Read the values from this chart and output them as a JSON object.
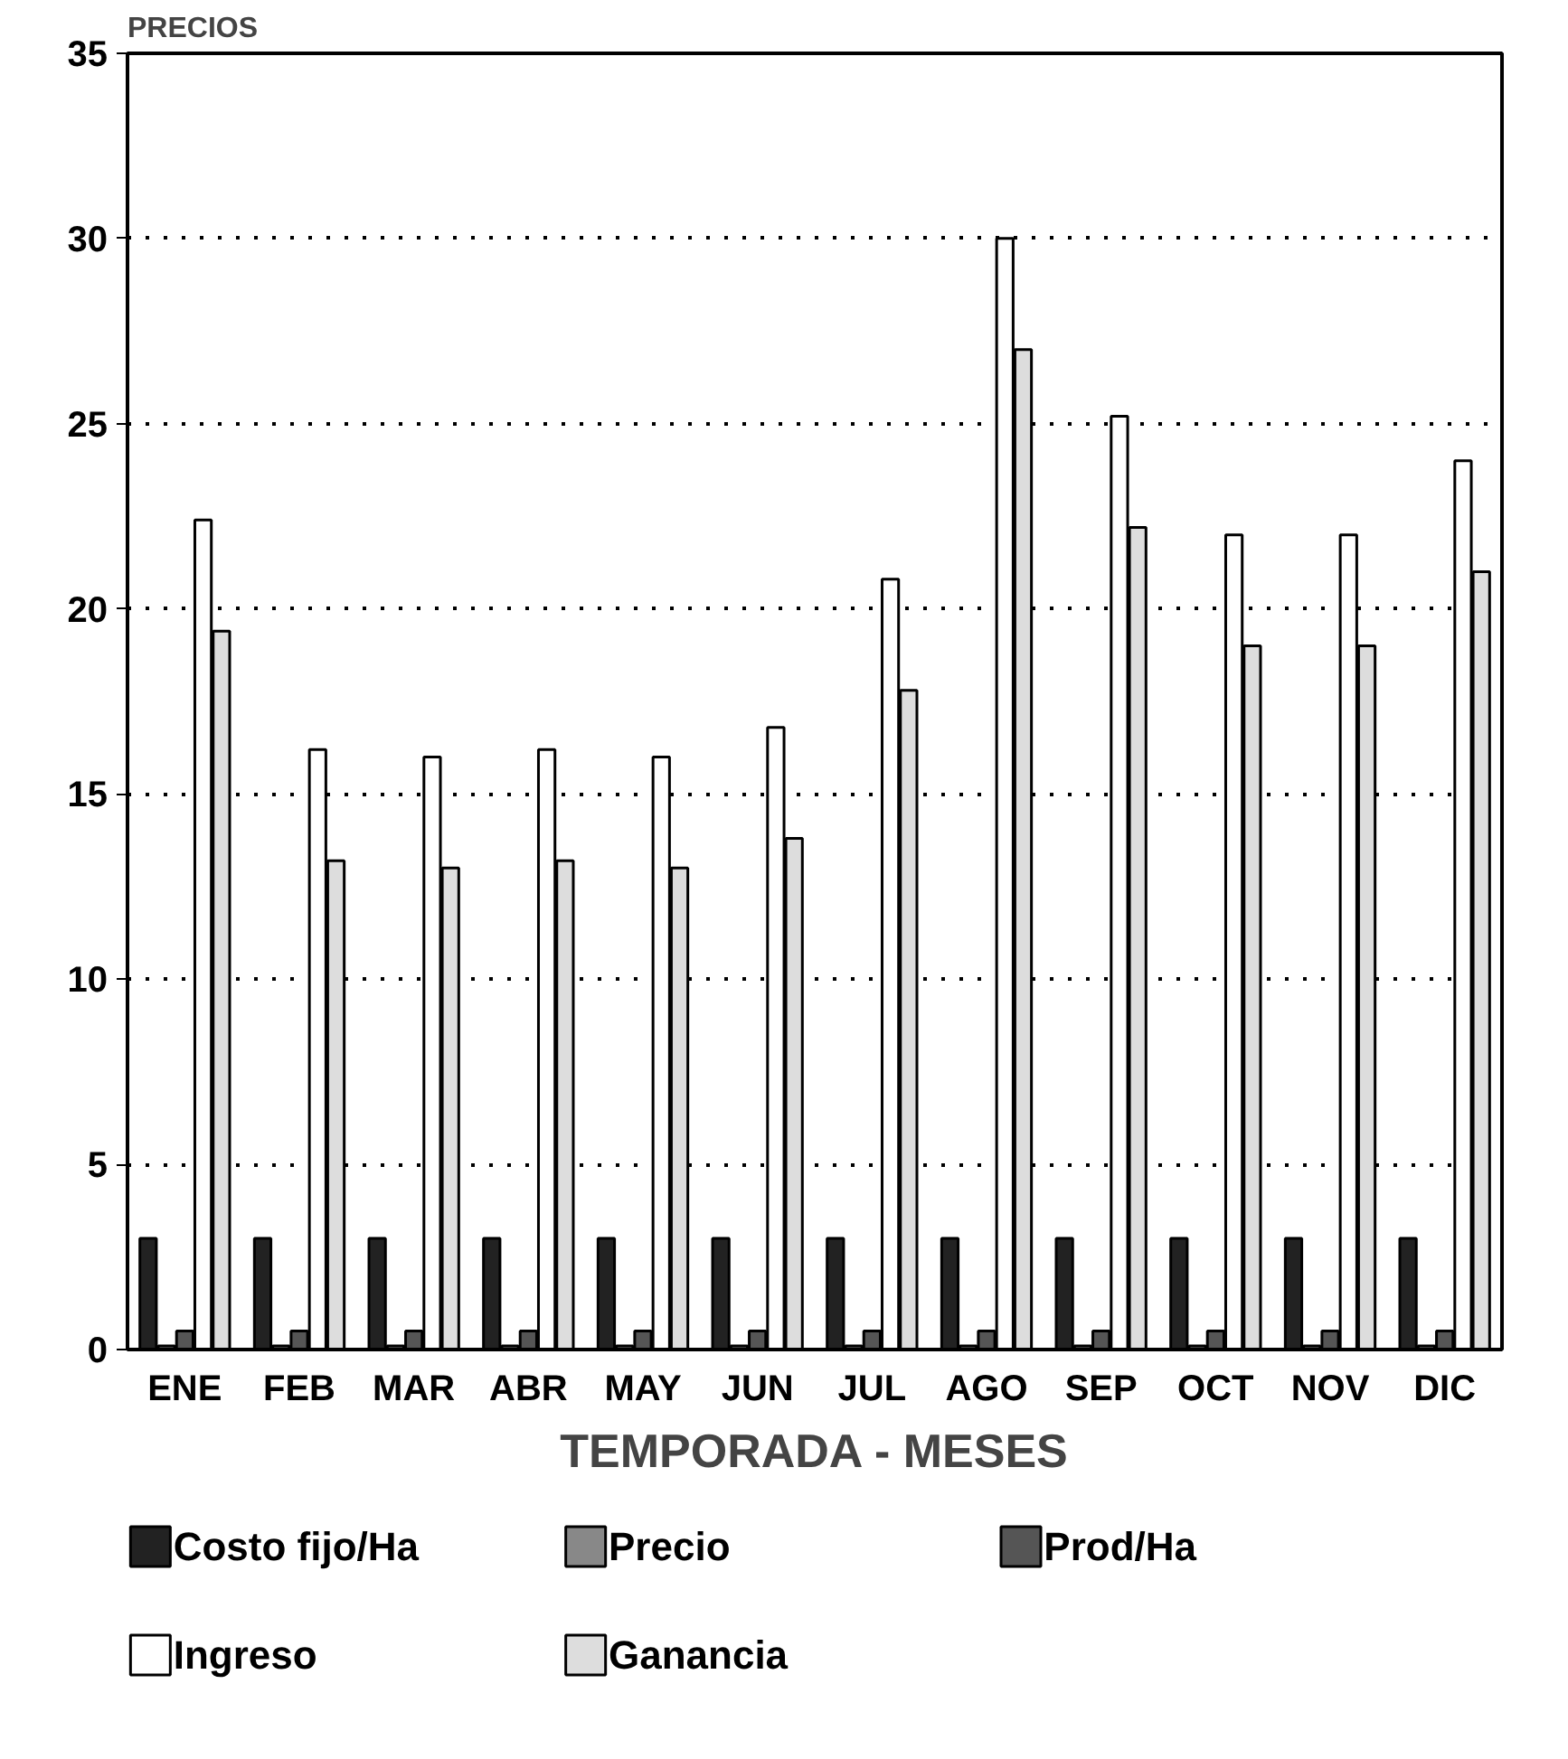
{
  "chart_data": {
    "type": "bar",
    "ylabel": "PRECIOS",
    "xlabel": "TEMPORADA - MESES",
    "categories": [
      "ENE",
      "FEB",
      "MAR",
      "ABR",
      "MAY",
      "JUN",
      "JUL",
      "AGO",
      "SEP",
      "OCT",
      "NOV",
      "DIC"
    ],
    "series": [
      {
        "name": "Costo fijo/Ha",
        "color": "#222222",
        "values": [
          3,
          3,
          3,
          3,
          3,
          3,
          3,
          3,
          3,
          3,
          3,
          3
        ]
      },
      {
        "name": "Precio",
        "color": "#888888",
        "values": [
          0.1,
          0.1,
          0.1,
          0.1,
          0.1,
          0.1,
          0.1,
          0.1,
          0.1,
          0.1,
          0.1,
          0.1
        ]
      },
      {
        "name": "Prod/Ha",
        "color": "#555555",
        "values": [
          0.5,
          0.5,
          0.5,
          0.5,
          0.5,
          0.5,
          0.5,
          0.5,
          0.5,
          0.5,
          0.5,
          0.5
        ]
      },
      {
        "name": "Ingreso",
        "color": "#ffffff",
        "values": [
          22.4,
          16.2,
          16.0,
          16.2,
          16.0,
          16.8,
          20.8,
          30.0,
          25.2,
          22.0,
          22.0,
          24.0
        ]
      },
      {
        "name": "Ganancia",
        "color": "#dddddd",
        "values": [
          19.4,
          13.2,
          13.0,
          13.2,
          13.0,
          13.8,
          17.8,
          27.0,
          22.2,
          19.0,
          19.0,
          21.0
        ]
      }
    ],
    "ylim": [
      0,
      35
    ],
    "yticks": [
      0,
      5,
      10,
      15,
      20,
      25,
      30,
      35
    ],
    "grid": "y",
    "legend": "bottom"
  }
}
